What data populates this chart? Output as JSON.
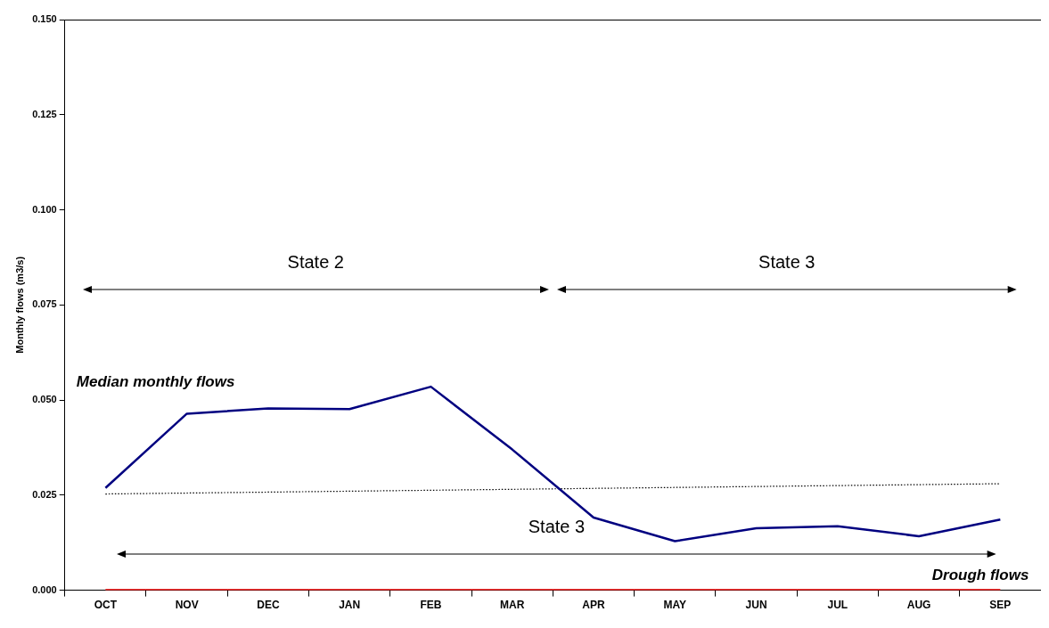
{
  "chart_data": {
    "type": "line",
    "ylabel": "Monthly flows (m3/s)",
    "categories": [
      "OCT",
      "NOV",
      "DEC",
      "JAN",
      "FEB",
      "MAR",
      "APR",
      "MAY",
      "JUN",
      "JUL",
      "AUG",
      "SEP"
    ],
    "series": [
      {
        "name": "Median monthly flows",
        "color": "#000080",
        "values": [
          0.0269,
          0.0464,
          0.0478,
          0.0476,
          0.0535,
          0.037,
          0.0191,
          0.0129,
          0.0163,
          0.0168,
          0.0142,
          0.0186
        ]
      },
      {
        "name": "Drough flows",
        "color": "#ff0000",
        "values": [
          0,
          0,
          0,
          0,
          0,
          0,
          0,
          0,
          0,
          0,
          0,
          0
        ]
      },
      {
        "color": "#000000",
        "line_style": "dotted",
        "values": [
          0.0253,
          null,
          null,
          null,
          null,
          null,
          null,
          null,
          null,
          null,
          null,
          0.028
        ]
      }
    ],
    "ylim": [
      0,
      0.15
    ],
    "yticks": [
      {
        "value": 0,
        "label": "0.000"
      },
      {
        "value": 0.025,
        "label": "0.025"
      },
      {
        "value": 0.05,
        "label": "0.050"
      },
      {
        "value": 0.075,
        "label": "0.075"
      },
      {
        "value": 0.1,
        "label": "0.100"
      },
      {
        "value": 0.125,
        "label": "0.125"
      },
      {
        "value": 0.15,
        "label": "0.150"
      }
    ],
    "annotations": [
      "State 2",
      "State 3",
      "State 3"
    ],
    "grid": false,
    "legend": false,
    "marker": "none"
  }
}
